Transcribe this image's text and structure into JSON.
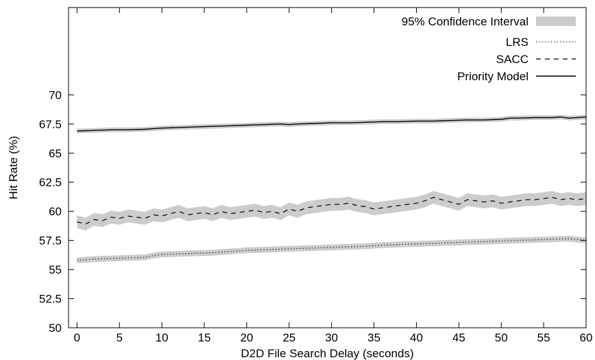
{
  "chart_data": {
    "type": "line",
    "xlabel": "D2D File Search Delay (seconds)",
    "ylabel": "Hit Rate (%)",
    "xlim": [
      -1,
      60
    ],
    "ylim": [
      50,
      77.5
    ],
    "x_ticks": [
      0,
      5,
      10,
      15,
      20,
      25,
      30,
      35,
      40,
      45,
      50,
      55,
      60
    ],
    "x_tick_labels": [
      "0",
      "5",
      "10",
      "15",
      "20",
      "25",
      "30",
      "35",
      "40",
      "45",
      "50",
      "55",
      "60"
    ],
    "y_ticks": [
      50,
      52.5,
      55,
      57.5,
      60,
      62.5,
      65,
      67.5,
      70
    ],
    "y_tick_labels": [
      "50",
      "52.5",
      "55",
      "57.5",
      "60",
      "62.5",
      "65",
      "67.5",
      "70"
    ],
    "grid": false,
    "legend_position": "top-right",
    "band_label": "95% Confidence Interval",
    "band_color": "#cccccc",
    "series": [
      {
        "name": "LRS",
        "style": "dotted",
        "x": [
          0,
          2,
          4,
          6,
          8,
          9,
          10,
          12,
          14,
          16,
          17,
          18,
          20,
          22,
          24,
          26,
          28,
          30,
          32,
          34,
          35,
          36,
          38,
          40,
          42,
          44,
          46,
          48,
          50,
          52,
          54,
          56,
          58,
          60
        ],
        "y": [
          55.8,
          55.9,
          55.95,
          56.0,
          56.05,
          56.2,
          56.3,
          56.35,
          56.4,
          56.45,
          56.5,
          56.55,
          56.65,
          56.7,
          56.75,
          56.8,
          56.85,
          56.9,
          56.95,
          57.0,
          57.05,
          57.1,
          57.15,
          57.2,
          57.25,
          57.3,
          57.35,
          57.4,
          57.45,
          57.5,
          57.55,
          57.6,
          57.65,
          57.5
        ],
        "ci_half_width": 0.25
      },
      {
        "name": "SACC",
        "style": "dashed",
        "x": [
          0,
          1,
          2,
          3,
          4,
          5,
          6,
          7,
          8,
          9,
          10,
          11,
          12,
          13,
          14,
          15,
          16,
          17,
          18,
          19,
          20,
          21,
          22,
          23,
          24,
          25,
          26,
          27,
          28,
          29,
          30,
          31,
          32,
          33,
          34,
          35,
          36,
          37,
          38,
          39,
          40,
          41,
          42,
          43,
          44,
          45,
          46,
          47,
          48,
          49,
          50,
          51,
          52,
          53,
          54,
          55,
          56,
          57,
          58,
          59,
          60
        ],
        "y": [
          59.1,
          58.9,
          59.3,
          59.2,
          59.5,
          59.4,
          59.6,
          59.5,
          59.4,
          59.7,
          59.6,
          59.8,
          60.0,
          59.7,
          59.8,
          59.9,
          59.7,
          60.0,
          59.8,
          59.9,
          60.0,
          60.1,
          59.9,
          60.0,
          59.8,
          60.2,
          60.0,
          60.3,
          60.4,
          60.5,
          60.6,
          60.6,
          60.7,
          60.5,
          60.4,
          60.2,
          60.3,
          60.4,
          60.5,
          60.6,
          60.7,
          60.9,
          61.2,
          61.0,
          60.8,
          60.6,
          61.0,
          60.9,
          60.8,
          60.9,
          60.7,
          60.8,
          60.9,
          61.0,
          61.0,
          61.1,
          61.2,
          61.0,
          61.1,
          61.0,
          61.1
        ],
        "ci_half_width": 0.55
      },
      {
        "name": "Priority Model",
        "style": "solid",
        "x": [
          0,
          2,
          4,
          6,
          8,
          9,
          10,
          12,
          14,
          16,
          18,
          20,
          22,
          24,
          25,
          26,
          28,
          30,
          32,
          34,
          36,
          38,
          40,
          42,
          44,
          46,
          48,
          50,
          51,
          52,
          54,
          56,
          57,
          58,
          60
        ],
        "y": [
          66.9,
          66.95,
          67.0,
          67.0,
          67.05,
          67.1,
          67.15,
          67.2,
          67.25,
          67.3,
          67.35,
          67.4,
          67.45,
          67.5,
          67.45,
          67.5,
          67.55,
          67.6,
          67.6,
          67.65,
          67.7,
          67.7,
          67.75,
          67.75,
          67.8,
          67.85,
          67.85,
          67.9,
          68.0,
          68.0,
          68.05,
          68.05,
          68.1,
          68.0,
          68.1
        ],
        "ci_half_width": 0.2
      }
    ]
  }
}
